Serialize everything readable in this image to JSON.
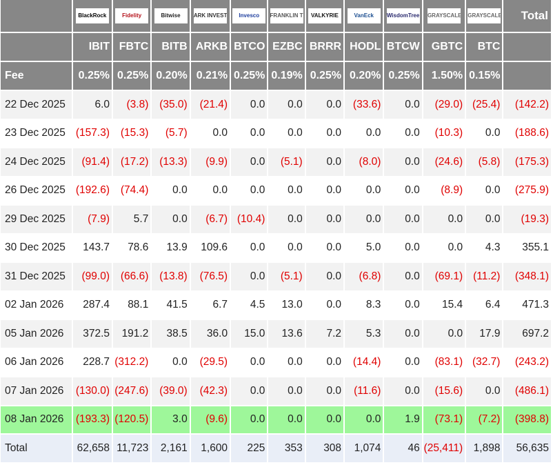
{
  "header": {
    "logos": [
      "BlackRock",
      "Fidelity",
      "Bitwise",
      "ARK INVEST",
      "Invesco",
      "FRANKLIN TEMPLETON",
      "VALKYRIE",
      "VanEck",
      "WisdomTree",
      "GRAYSCALE",
      "GRAYSCALE"
    ],
    "total_label": "Total",
    "tickers": [
      "IBIT",
      "FBTC",
      "BITB",
      "ARKB",
      "BTCO",
      "EZBC",
      "BRRR",
      "HODL",
      "BTCW",
      "GBTC",
      "BTC"
    ],
    "fee_label": "Fee",
    "fees": [
      "0.25%",
      "0.25%",
      "0.20%",
      "0.21%",
      "0.25%",
      "0.19%",
      "0.25%",
      "0.20%",
      "0.25%",
      "1.50%",
      "0.15%"
    ]
  },
  "table": {
    "rows": [
      [
        "22 Dec 2025",
        "6.0",
        "(3.8)",
        "(35.0)",
        "(21.4)",
        "0.0",
        "0.0",
        "0.0",
        "(33.6)",
        "0.0",
        "(29.0)",
        "(25.4)",
        "(142.2)"
      ],
      [
        "23 Dec 2025",
        "(157.3)",
        "(15.3)",
        "(5.7)",
        "0.0",
        "0.0",
        "0.0",
        "0.0",
        "0.0",
        "0.0",
        "(10.3)",
        "0.0",
        "(188.6)"
      ],
      [
        "24 Dec 2025",
        "(91.4)",
        "(17.2)",
        "(13.3)",
        "(9.9)",
        "0.0",
        "(5.1)",
        "0.0",
        "(8.0)",
        "0.0",
        "(24.6)",
        "(5.8)",
        "(175.3)"
      ],
      [
        "26 Dec 2025",
        "(192.6)",
        "(74.4)",
        "0.0",
        "0.0",
        "0.0",
        "0.0",
        "0.0",
        "0.0",
        "0.0",
        "(8.9)",
        "0.0",
        "(275.9)"
      ],
      [
        "29 Dec 2025",
        "(7.9)",
        "5.7",
        "0.0",
        "(6.7)",
        "(10.4)",
        "0.0",
        "0.0",
        "0.0",
        "0.0",
        "0.0",
        "0.0",
        "(19.3)"
      ],
      [
        "30 Dec 2025",
        "143.7",
        "78.6",
        "13.9",
        "109.6",
        "0.0",
        "0.0",
        "0.0",
        "5.0",
        "0.0",
        "0.0",
        "4.3",
        "355.1"
      ],
      [
        "31 Dec 2025",
        "(99.0)",
        "(66.6)",
        "(13.8)",
        "(76.5)",
        "0.0",
        "(5.1)",
        "0.0",
        "(6.8)",
        "0.0",
        "(69.1)",
        "(11.2)",
        "(348.1)"
      ],
      [
        "02 Jan 2026",
        "287.4",
        "88.1",
        "41.5",
        "6.7",
        "4.5",
        "13.0",
        "0.0",
        "8.3",
        "0.0",
        "15.4",
        "6.4",
        "471.3"
      ],
      [
        "05 Jan 2026",
        "372.5",
        "191.2",
        "38.5",
        "36.0",
        "15.0",
        "13.6",
        "7.2",
        "5.3",
        "0.0",
        "0.0",
        "17.9",
        "697.2"
      ],
      [
        "06 Jan 2026",
        "228.7",
        "(312.2)",
        "0.0",
        "(29.5)",
        "0.0",
        "0.0",
        "0.0",
        "(14.4)",
        "0.0",
        "(83.1)",
        "(32.7)",
        "(243.2)"
      ],
      [
        "07 Jan 2026",
        "(130.0)",
        "(247.6)",
        "(39.0)",
        "(42.3)",
        "0.0",
        "0.0",
        "0.0",
        "(11.6)",
        "0.0",
        "(15.6)",
        "0.0",
        "(486.1)"
      ],
      [
        "08 Jan 2026",
        "(193.3)",
        "(120.5)",
        "3.0",
        "(9.6)",
        "0.0",
        "0.0",
        "0.0",
        "0.0",
        "1.9",
        "(73.1)",
        "(7.2)",
        "(398.8)"
      ]
    ]
  },
  "footer": [
    "Total",
    "62,658",
    "11,723",
    "2,161",
    "1,600",
    "225",
    "353",
    "308",
    "1,074",
    "46",
    "(25,411)",
    "1,898",
    "56,635"
  ]
}
